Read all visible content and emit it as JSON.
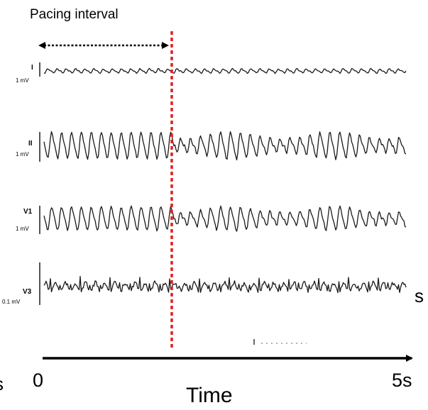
{
  "title": "Pacing interval",
  "leads": [
    {
      "name": "I",
      "scale": "1 mV",
      "style": "low"
    },
    {
      "name": "II",
      "scale": "1 mV",
      "style": "high"
    },
    {
      "name": "V1",
      "scale": "1 mV",
      "style": "high"
    },
    {
      "name": "V3",
      "scale": "0.1 mV",
      "style": "spiky"
    }
  ],
  "axis": {
    "label": "Time",
    "start_label": "0",
    "end_label": "5s"
  },
  "edge_text": {
    "left": "s",
    "right": "s"
  },
  "colors": {
    "trace": "#1a1a1a",
    "marker": "#e02020",
    "axis": "#000000"
  }
}
